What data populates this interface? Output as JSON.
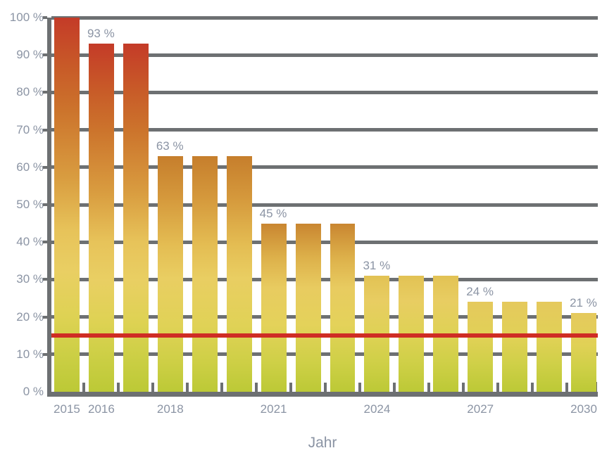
{
  "chart_data": {
    "type": "bar",
    "xlabel": "Jahr",
    "x": [
      2015,
      2016,
      2017,
      2018,
      2019,
      2020,
      2021,
      2022,
      2023,
      2024,
      2025,
      2026,
      2027,
      2028,
      2029,
      2030
    ],
    "values": [
      100,
      93,
      93,
      63,
      63,
      63,
      45,
      45,
      45,
      31,
      31,
      31,
      24,
      24,
      24,
      21
    ],
    "bar_value_labels": [
      {
        "year": 2016,
        "text": "93 %"
      },
      {
        "year": 2018,
        "text": "63 %"
      },
      {
        "year": 2021,
        "text": "45 %"
      },
      {
        "year": 2024,
        "text": "31 %"
      },
      {
        "year": 2027,
        "text": "24 %"
      },
      {
        "year": 2030,
        "text": "21 %"
      }
    ],
    "x_tick_years": [
      2015,
      2016,
      2018,
      2021,
      2024,
      2027,
      2030
    ],
    "y_ticks": [
      {
        "value": 0,
        "label": "0 %"
      },
      {
        "value": 10,
        "label": "10 %"
      },
      {
        "value": 20,
        "label": "20 %"
      },
      {
        "value": 30,
        "label": "30 %"
      },
      {
        "value": 40,
        "label": "40 %"
      },
      {
        "value": 50,
        "label": "50 %"
      },
      {
        "value": 60,
        "label": "60 %"
      },
      {
        "value": 70,
        "label": "70 %"
      },
      {
        "value": 80,
        "label": "80 %"
      },
      {
        "value": 90,
        "label": "90 %"
      },
      {
        "value": 100,
        "label": "100 %"
      }
    ],
    "ylim": [
      0,
      100
    ],
    "grid": "horizontal-solid",
    "legend": "none",
    "reference_line": {
      "value": 15,
      "color": "#cf2d24"
    },
    "colors": {
      "grid": "#6d7072",
      "axis": "#6d7072",
      "label": "#8b94a4",
      "background": "#ffffff",
      "bar_bottom": "#bcc936"
    },
    "bar_gradient_tiers": [
      {
        "min": 90,
        "stops": [
          "#c43b28 0%",
          "#c85a28 13%",
          "#cc742c 25%",
          "#d99d40 43%",
          "#e7c35a 57%",
          "#e9cf63 68%",
          "#ded253 80%",
          "#cccf45 90%",
          "#bcc936 100%"
        ]
      },
      {
        "min": 60,
        "stops": [
          "#c67e2c 0%",
          "#d5993c 18%",
          "#e4bd53 38%",
          "#e9ce62 52%",
          "#e0d256 72%",
          "#cdcf45 88%",
          "#bcc936 100%"
        ]
      },
      {
        "min": 40,
        "stops": [
          "#c98631 0%",
          "#ddb04a 20%",
          "#e8cb60 38%",
          "#e4d25a 60%",
          "#cfd047 82%",
          "#bcc936 100%"
        ]
      },
      {
        "min": 28,
        "stops": [
          "#e2c254 0%",
          "#e8cd62 22%",
          "#ded254 52%",
          "#cdcf45 78%",
          "#bcc936 100%"
        ]
      },
      {
        "min": 0,
        "stops": [
          "#e5c95d 0%",
          "#e1d156 40%",
          "#d0d048 68%",
          "#bcc936 100%"
        ]
      }
    ]
  }
}
